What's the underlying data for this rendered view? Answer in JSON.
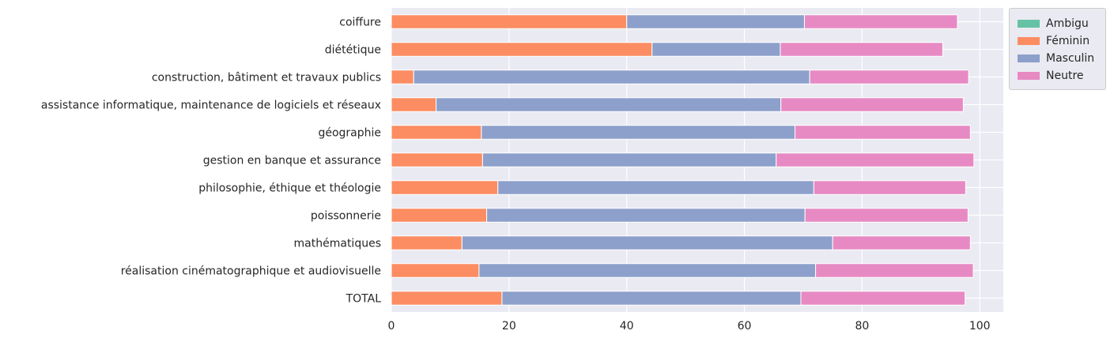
{
  "chart_data": {
    "type": "bar",
    "orientation": "horizontal",
    "stacked": true,
    "categories": [
      "coiffure",
      "diététique",
      "construction, bâtiment et travaux publics",
      "assistance informatique, maintenance de logiciels et réseaux",
      "géographie",
      "gestion en banque et assurance",
      "philosophie, éthique et théologie",
      "poissonnerie",
      "mathématiques",
      "réalisation cinématographique et audiovisuelle",
      "TOTAL"
    ],
    "series": [
      {
        "name": "Ambigu",
        "color": "#66c2a5",
        "values": [
          0,
          0,
          0,
          0,
          0,
          0,
          0,
          0,
          0,
          0,
          0
        ]
      },
      {
        "name": "Féminin",
        "color": "#fc8d62",
        "values": [
          40.0,
          44.3,
          3.8,
          7.6,
          15.3,
          15.5,
          18.1,
          16.2,
          12.0,
          14.9,
          18.8
        ]
      },
      {
        "name": "Masculin",
        "color": "#8da0cb",
        "values": [
          30.2,
          21.8,
          67.3,
          58.6,
          53.3,
          49.9,
          53.7,
          54.1,
          63.0,
          57.2,
          50.8
        ]
      },
      {
        "name": "Neutre",
        "color": "#e78ac3",
        "values": [
          26.0,
          27.6,
          27.0,
          31.0,
          29.8,
          33.6,
          25.8,
          27.7,
          23.4,
          26.8,
          27.9
        ]
      }
    ],
    "xticks": [
      "0",
      "20",
      "40",
      "60",
      "80",
      "100"
    ],
    "xlim": [
      0,
      104
    ],
    "xlabel": "",
    "ylabel": "",
    "title": "",
    "grid": true,
    "legend": "upper-right outside"
  },
  "legend": {
    "items": [
      {
        "label": "Ambigu",
        "color": "#66c2a5"
      },
      {
        "label": "Féminin",
        "color": "#fc8d62"
      },
      {
        "label": "Masculin",
        "color": "#8da0cb"
      },
      {
        "label": "Neutre",
        "color": "#e78ac3"
      }
    ]
  }
}
